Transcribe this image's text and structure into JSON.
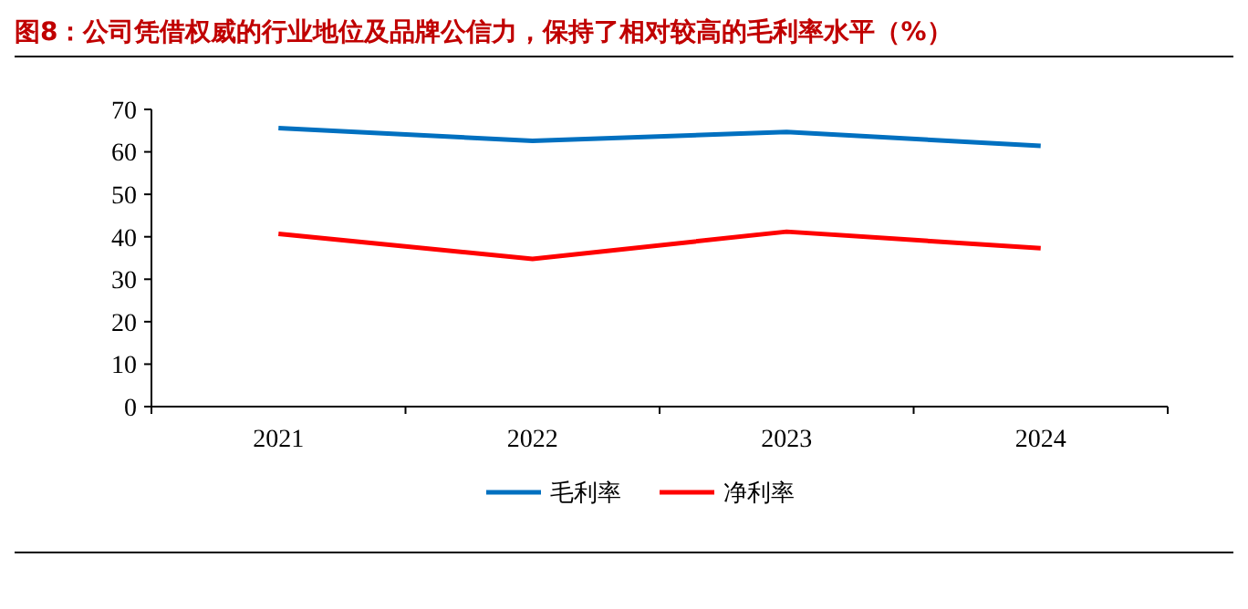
{
  "chart_data": {
    "type": "line",
    "title": "图8：公司凭借权威的行业地位及品牌公信力，保持了相对较高的毛利率水平（%）",
    "categories": [
      "2021",
      "2022",
      "2023",
      "2024"
    ],
    "series": [
      {
        "name": "毛利率",
        "color": "#0070c0",
        "values": [
          65.6,
          62.6,
          64.7,
          61.4
        ]
      },
      {
        "name": "净利率",
        "color": "#ff0000",
        "values": [
          40.7,
          34.8,
          41.2,
          37.3
        ]
      }
    ],
    "ylim": [
      0,
      70
    ],
    "yticks": [
      0,
      10,
      20,
      30,
      40,
      50,
      60,
      70
    ],
    "grid": false,
    "legend": "bottom",
    "marker": "none",
    "line_style": "solid"
  }
}
